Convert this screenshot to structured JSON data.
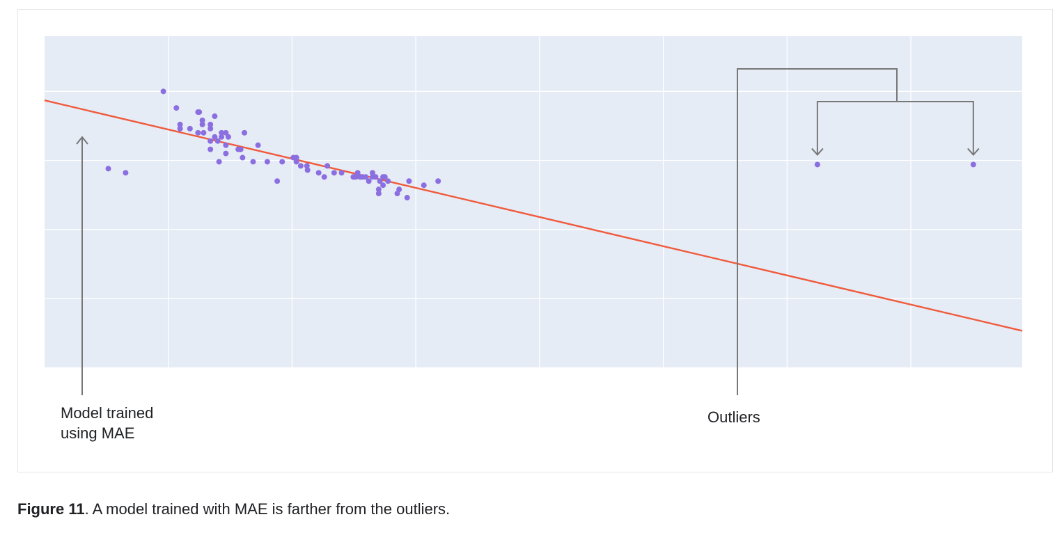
{
  "chart_data": {
    "type": "scatter",
    "title": "",
    "xlabel": "",
    "ylabel": "",
    "xlim": [
      0,
      15.8
    ],
    "ylim": [
      0,
      4.8
    ],
    "grid": true,
    "axis_tick_labels_shown": false,
    "background_color": "#e5ecf6",
    "point_color": "#8b6ee0",
    "line_color": "#f05a3c",
    "annotation_color": "#777777",
    "points": [
      [
        1.03,
        2.88
      ],
      [
        1.31,
        2.82
      ],
      [
        1.92,
        4.0
      ],
      [
        2.13,
        3.76
      ],
      [
        2.19,
        3.52
      ],
      [
        2.19,
        3.46
      ],
      [
        2.35,
        3.46
      ],
      [
        2.48,
        3.7
      ],
      [
        2.5,
        3.7
      ],
      [
        2.55,
        3.58
      ],
      [
        2.55,
        3.52
      ],
      [
        2.48,
        3.4
      ],
      [
        2.57,
        3.4
      ],
      [
        2.68,
        3.52
      ],
      [
        2.68,
        3.46
      ],
      [
        2.68,
        3.28
      ],
      [
        2.68,
        3.16
      ],
      [
        2.75,
        3.64
      ],
      [
        2.75,
        3.34
      ],
      [
        2.8,
        3.28
      ],
      [
        2.86,
        3.4
      ],
      [
        2.86,
        3.34
      ],
      [
        2.82,
        2.98
      ],
      [
        2.93,
        3.4
      ],
      [
        2.93,
        3.22
      ],
      [
        2.93,
        3.1
      ],
      [
        2.97,
        3.34
      ],
      [
        3.13,
        3.16
      ],
      [
        3.17,
        3.16
      ],
      [
        3.2,
        3.04
      ],
      [
        3.23,
        3.4
      ],
      [
        3.37,
        2.98
      ],
      [
        3.45,
        3.22
      ],
      [
        3.6,
        2.98
      ],
      [
        3.76,
        2.7
      ],
      [
        3.84,
        2.98
      ],
      [
        4.02,
        3.04
      ],
      [
        4.07,
        3.04
      ],
      [
        4.07,
        2.98
      ],
      [
        4.14,
        2.92
      ],
      [
        4.24,
        2.92
      ],
      [
        4.25,
        2.86
      ],
      [
        4.43,
        2.82
      ],
      [
        4.52,
        2.76
      ],
      [
        4.57,
        2.92
      ],
      [
        4.68,
        2.82
      ],
      [
        4.8,
        2.82
      ],
      [
        4.99,
        2.76
      ],
      [
        5.03,
        2.76
      ],
      [
        5.06,
        2.82
      ],
      [
        5.1,
        2.76
      ],
      [
        5.14,
        2.76
      ],
      [
        5.19,
        2.76
      ],
      [
        5.24,
        2.7
      ],
      [
        5.3,
        2.82
      ],
      [
        5.3,
        2.76
      ],
      [
        5.35,
        2.76
      ],
      [
        5.4,
        2.52
      ],
      [
        5.4,
        2.58
      ],
      [
        5.42,
        2.7
      ],
      [
        5.47,
        2.64
      ],
      [
        5.47,
        2.76
      ],
      [
        5.5,
        2.76
      ],
      [
        5.55,
        2.7
      ],
      [
        5.7,
        2.52
      ],
      [
        5.73,
        2.58
      ],
      [
        5.86,
        2.46
      ],
      [
        5.89,
        2.7
      ],
      [
        6.13,
        2.64
      ],
      [
        6.36,
        2.7
      ],
      [
        12.49,
        2.94
      ],
      [
        15.01,
        2.94
      ]
    ],
    "fit_line": {
      "name": "Model trained using MAE",
      "x": [
        0,
        15.8
      ],
      "y": [
        3.87,
        0.53
      ]
    },
    "outlier_points": [
      [
        12.49,
        2.94
      ],
      [
        15.01,
        2.94
      ]
    ]
  },
  "annotations": {
    "model_label_line1": "Model trained",
    "model_label_line2": "using MAE",
    "outliers_label": "Outliers"
  },
  "caption": {
    "bold": "Figure 11",
    "text": ". A model trained with MAE is farther from the outliers."
  }
}
